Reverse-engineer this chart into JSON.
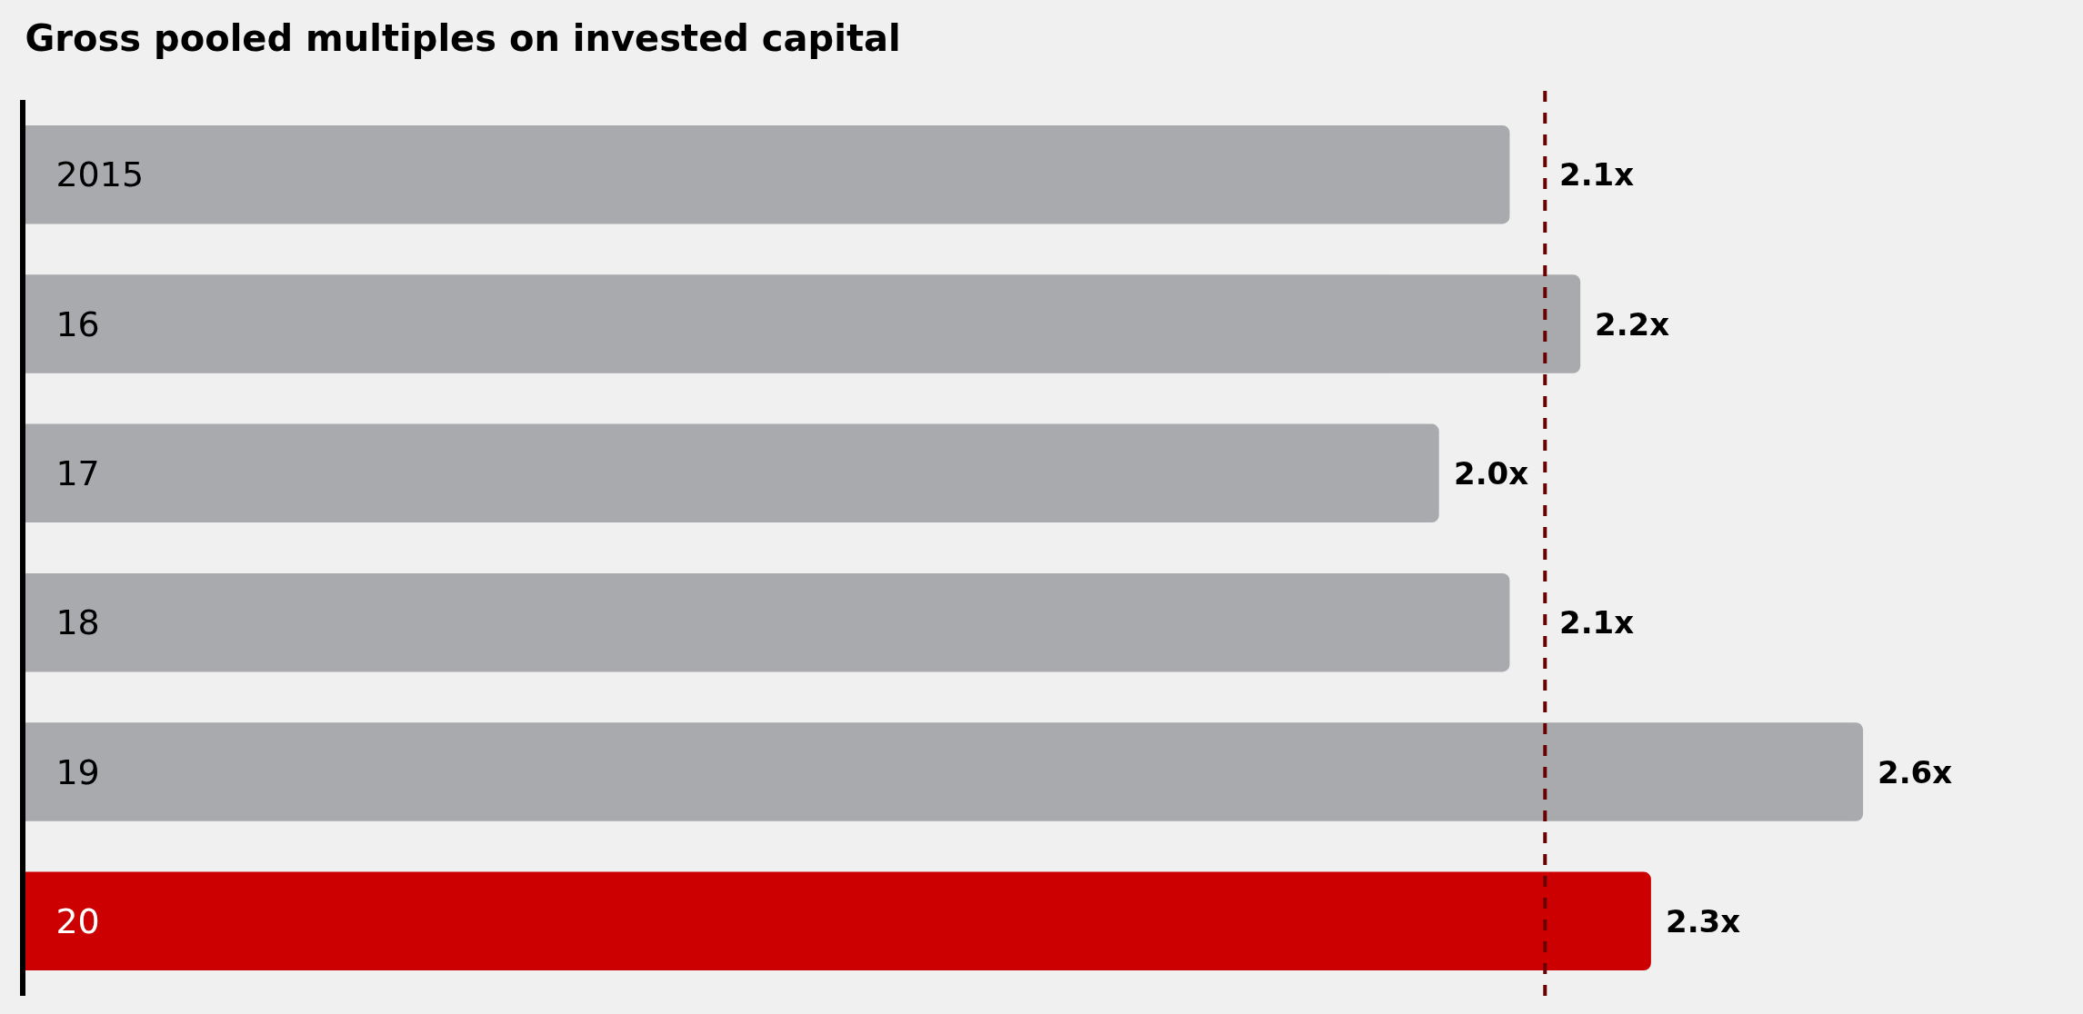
{
  "chart_data": {
    "type": "bar",
    "orientation": "horizontal",
    "title": "Gross pooled multiples on invested capital",
    "categories": [
      "2015",
      "16",
      "17",
      "18",
      "19",
      "20"
    ],
    "values": [
      2.1,
      2.2,
      2.0,
      2.1,
      2.6,
      2.3
    ],
    "colors": [
      "#a9aaad",
      "#a9aaad",
      "#a9aaad",
      "#a9aaad",
      "#a9aaad",
      "#cc0000"
    ],
    "value_labels": [
      "2.1x",
      "2.2x",
      "2.0x",
      "2.1x",
      "2.6x",
      "2.3x"
    ],
    "ref_lines": [
      {
        "axis": "x",
        "value": 2.15,
        "color": "#6b0000",
        "line_style": "dashed"
      }
    ],
    "grid": false
  }
}
